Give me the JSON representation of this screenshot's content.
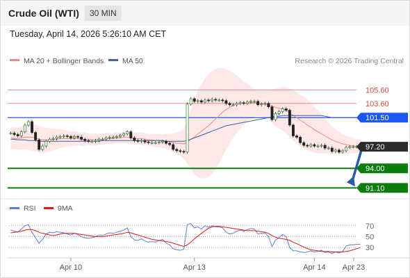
{
  "header": {
    "instrument": "Crude Oil (WTI)",
    "timeframe": "30 MIN",
    "datetime": "Tuesday, April 14, 2026 5:26:10 AM CET"
  },
  "legend": {
    "ma20": "MA 20 + Bollinger Bands",
    "ma50": "MA 50",
    "ma20_color": "#f08a80",
    "ma50_color": "#3f5fa8",
    "credit": "Research © 2026 Trading Central"
  },
  "rsi_legend": {
    "rsi": "RSI",
    "ma": "9MA",
    "rsi_color": "#5b7fd9",
    "ma_color": "#e01818"
  },
  "chart_data": {
    "type": "line",
    "price_axis": {
      "ylim": [
        89.6,
        108.0
      ]
    },
    "levels": [
      {
        "value": 105.6,
        "label": "105.60",
        "role": "resistance",
        "color": "#f28b82"
      },
      {
        "value": 103.6,
        "label": "103.60",
        "role": "resistance",
        "color": "#f28b82"
      },
      {
        "value": 101.5,
        "label": "101.50",
        "role": "pivot",
        "color": "#1a56f0"
      },
      {
        "value": 97.2,
        "label": "97.20",
        "role": "last",
        "color": "#222222"
      },
      {
        "value": 94.0,
        "label": "94.00",
        "role": "support",
        "color": "#0c7d0c"
      },
      {
        "value": 91.1,
        "label": "91.10",
        "role": "support",
        "color": "#0c7d0c"
      }
    ],
    "x_ticks": [
      "Apr 10",
      "Apr 13",
      "Apr 14",
      "Apr 23"
    ],
    "x_tick_index": [
      17,
      52,
      86,
      100
    ],
    "bars": 100,
    "close": [
      99.2,
      99.0,
      98.8,
      99.4,
      100.4,
      100.9,
      99.3,
      98.2,
      96.8,
      97.3,
      98.0,
      98.3,
      98.4,
      98.6,
      98.7,
      98.8,
      98.7,
      98.5,
      98.7,
      98.6,
      98.3,
      98.1,
      98.0,
      98.0,
      98.1,
      98.3,
      98.3,
      98.5,
      98.6,
      98.6,
      98.7,
      98.9,
      99.1,
      99.4,
      98.5,
      98.1,
      98.0,
      98.1,
      97.9,
      97.8,
      97.8,
      97.8,
      97.9,
      98.0,
      97.7,
      97.5,
      96.8,
      96.6,
      96.5,
      96.4,
      103.5,
      104.3,
      103.9,
      104.0,
      103.8,
      104.1,
      104.0,
      104.2,
      104.1,
      104.1,
      104.0,
      103.6,
      103.4,
      103.4,
      103.6,
      103.7,
      103.6,
      103.8,
      103.9,
      103.9,
      103.4,
      103.5,
      103.6,
      103.1,
      101.2,
      102.1,
      102.4,
      102.8,
      102.6,
      100.4,
      98.8,
      98.6,
      97.8,
      97.4,
      97.3,
      97.5,
      97.3,
      97.3,
      97.4,
      97.0,
      97.0,
      96.5,
      96.7,
      96.4,
      96.6,
      97.1,
      97.2,
      97.2,
      97.2,
      97.2
    ],
    "ma20": [
      98.5,
      98.4,
      98.4,
      98.5,
      98.6,
      98.6,
      98.6,
      98.5,
      98.3,
      98.2,
      98.2,
      98.2,
      98.3,
      98.3,
      98.4,
      98.4,
      98.4,
      98.4,
      98.4,
      98.4,
      98.3,
      98.3,
      98.3,
      98.2,
      98.3,
      98.3,
      98.3,
      98.4,
      98.4,
      98.4,
      98.5,
      98.5,
      98.6,
      98.6,
      98.5,
      98.4,
      98.4,
      98.4,
      98.3,
      98.2,
      98.2,
      98.1,
      98.1,
      98.0,
      98.0,
      97.9,
      97.8,
      97.7,
      97.7,
      97.6,
      97.9,
      98.3,
      98.6,
      99.1,
      99.5,
      99.9,
      100.3,
      100.8,
      101.3,
      101.8,
      102.3,
      102.7,
      103.0,
      103.3,
      103.5,
      103.6,
      103.6,
      103.7,
      103.7,
      103.7,
      103.6,
      103.6,
      103.5,
      103.4,
      103.2,
      103.0,
      102.9,
      102.8,
      102.6,
      102.2,
      101.8,
      101.5,
      101.1,
      100.8,
      100.4,
      100.1,
      99.7,
      99.4,
      99.1,
      98.8,
      98.5,
      98.2,
      98.0,
      97.8,
      97.6,
      97.5,
      97.4,
      97.3,
      97.3,
      97.2
    ],
    "ma50": [
      98.3,
      98.3,
      98.2,
      98.2,
      98.2,
      98.1,
      98.1,
      98.1,
      98.0,
      98.0,
      98.0,
      98.0,
      98.0,
      98.0,
      98.0,
      98.0,
      98.0,
      98.0,
      98.0,
      98.0,
      98.0,
      98.0,
      98.0,
      98.0,
      98.0,
      98.0,
      98.1,
      98.1,
      98.1,
      98.1,
      98.1,
      98.1,
      98.1,
      98.1,
      98.1,
      98.1,
      98.1,
      98.1,
      98.1,
      98.1,
      98.1,
      98.1,
      98.1,
      98.1,
      98.0,
      98.0,
      98.0,
      98.0,
      98.0,
      98.0,
      98.1,
      98.3,
      98.5,
      98.7,
      98.9,
      99.1,
      99.3,
      99.5,
      99.7,
      99.9,
      100.1,
      100.3,
      100.4,
      100.5,
      100.6,
      100.7,
      100.8,
      100.9,
      101.0,
      101.1,
      101.2,
      101.3,
      101.4,
      101.5,
      101.6,
      101.7,
      101.7,
      101.8,
      101.8,
      101.8,
      101.8,
      101.8,
      101.8,
      101.8,
      101.8,
      101.8,
      101.8,
      101.8,
      101.8,
      101.7,
      101.6,
      101.5,
      101.5,
      101.5,
      101.5,
      101.5,
      101.5,
      101.5,
      101.5,
      101.5
    ],
    "bb_width": [
      1.6,
      1.6,
      1.6,
      1.7,
      1.8,
      1.9,
      2.0,
      2.0,
      2.0,
      1.9,
      1.8,
      1.7,
      1.6,
      1.5,
      1.4,
      1.3,
      1.2,
      1.1,
      1.1,
      1.0,
      1.0,
      1.0,
      0.9,
      0.9,
      0.9,
      0.8,
      0.8,
      0.8,
      0.8,
      0.8,
      0.8,
      0.8,
      0.9,
      0.9,
      0.9,
      0.9,
      0.9,
      0.9,
      0.9,
      0.9,
      0.9,
      1.0,
      1.0,
      1.0,
      1.1,
      1.2,
      1.4,
      1.6,
      1.8,
      2.2,
      3.2,
      4.4,
      5.5,
      6.4,
      7.0,
      7.4,
      7.6,
      7.6,
      7.4,
      7.0,
      6.5,
      6.0,
      5.4,
      4.8,
      4.2,
      3.7,
      3.2,
      2.8,
      2.4,
      2.1,
      1.9,
      1.9,
      2.0,
      2.2,
      2.5,
      2.8,
      3.0,
      3.2,
      3.4,
      3.6,
      3.7,
      3.8,
      3.8,
      3.8,
      3.7,
      3.6,
      3.4,
      3.2,
      2.9,
      2.6,
      2.3,
      2.0,
      1.8,
      1.6,
      1.4,
      1.3,
      1.2,
      1.1,
      1.0,
      1.0
    ],
    "forecast": {
      "from": 97.2,
      "to": 91.1
    },
    "rsi": {
      "ylim": [
        15,
        85
      ],
      "levels": [
        70,
        50,
        30
      ],
      "values": [
        62,
        60,
        58,
        64,
        70,
        72,
        58,
        48,
        38,
        45,
        55,
        58,
        57,
        59,
        58,
        57,
        55,
        53,
        56,
        54,
        50,
        48,
        47,
        48,
        50,
        53,
        52,
        55,
        57,
        56,
        58,
        60,
        62,
        66,
        50,
        44,
        43,
        46,
        42,
        40,
        41,
        40,
        43,
        45,
        38,
        35,
        28,
        26,
        25,
        27,
        72,
        74,
        66,
        68,
        64,
        70,
        67,
        70,
        68,
        68,
        66,
        58,
        55,
        56,
        60,
        62,
        60,
        63,
        65,
        64,
        55,
        56,
        57,
        50,
        32,
        44,
        48,
        54,
        50,
        30,
        24,
        24,
        22,
        21,
        22,
        24,
        22,
        23,
        25,
        21,
        22,
        19,
        22,
        20,
        23,
        33,
        35,
        35,
        36,
        36
      ],
      "ma": [
        57,
        58,
        59,
        60,
        62,
        63,
        63,
        61,
        58,
        56,
        55,
        53,
        52,
        53,
        55,
        56,
        56,
        56,
        56,
        55,
        54,
        53,
        52,
        51,
        50,
        50,
        50,
        51,
        52,
        53,
        54,
        55,
        56,
        58,
        57,
        55,
        53,
        51,
        49,
        47,
        45,
        44,
        43,
        42,
        41,
        40,
        38,
        36,
        34,
        32,
        35,
        40,
        46,
        51,
        56,
        61,
        65,
        68,
        69,
        69,
        68,
        67,
        66,
        65,
        64,
        63,
        62,
        61,
        61,
        61,
        60,
        59,
        58,
        56,
        52,
        49,
        47,
        46,
        45,
        43,
        40,
        37,
        34,
        31,
        28,
        26,
        25,
        24,
        23,
        23,
        23,
        22,
        22,
        22,
        22,
        23,
        24,
        26,
        28,
        30
      ]
    }
  }
}
